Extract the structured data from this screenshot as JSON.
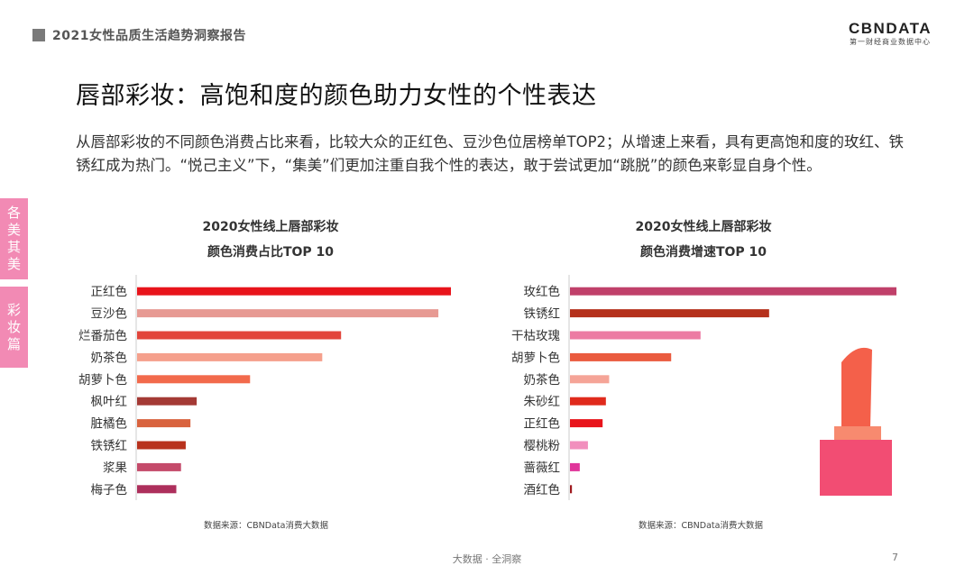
{
  "header": {
    "title": "2021女性品质生活趋势洞察报告"
  },
  "logo": {
    "main": "CBNDATA",
    "sub": "第一财经商业数据中心"
  },
  "page": {
    "title": "唇部彩妆：高饱和度的颜色助力女性的个性表达",
    "summary": "从唇部彩妆的不同颜色消费占比来看，比较大众的正红色、豆沙色位居榜单TOP2；从增速上来看，具有更高饱和度的玫红、铁锈红成为热门。“悦己主义”下，“集美”们更加注重自我个性的表达，敢于尝试更加“跳脱”的颜色来彰显自身个性。"
  },
  "side_tabs": [
    {
      "chars": [
        "各",
        "美",
        "其",
        "美"
      ]
    },
    {
      "chars": [
        "彩",
        "妆",
        "篇"
      ]
    }
  ],
  "chart_data": [
    {
      "type": "bar",
      "orientation": "horizontal",
      "title": "2020女性线上唇部彩妆",
      "subtitle": "颜色消费占比TOP 10",
      "categories": [
        "正红色",
        "豆沙色",
        "烂番茄色",
        "奶茶色",
        "胡萝卜色",
        "枫叶红",
        "脏橘色",
        "铁锈红",
        "浆果",
        "梅子色"
      ],
      "values": [
        100,
        96,
        65,
        59,
        36,
        19,
        17,
        15.5,
        14,
        12.5
      ],
      "colors": [
        "#e8141b",
        "#e79a93",
        "#e2453b",
        "#f5a08c",
        "#f26a4c",
        "#a43a35",
        "#d9633e",
        "#b8321d",
        "#c44a6a",
        "#ad2f5c"
      ],
      "source": "数据来源：CBNData消费大数据"
    },
    {
      "type": "bar",
      "orientation": "horizontal",
      "title": "2020女性线上唇部彩妆",
      "subtitle": "颜色消费增速TOP 10",
      "categories": [
        "玫红色",
        "铁锈红",
        "干枯玫瑰",
        "胡萝卜色",
        "奶茶色",
        "朱砂红",
        "正红色",
        "樱桃粉",
        "蔷薇红",
        "酒红色"
      ],
      "values": [
        100,
        61,
        40,
        31,
        12,
        11,
        10,
        5.5,
        3,
        0.6
      ],
      "colors": [
        "#c0406a",
        "#b5311c",
        "#ec7ba3",
        "#ea5b3f",
        "#f5a497",
        "#e02a1c",
        "#e8141b",
        "#f18fbd",
        "#e0359a",
        "#a01a1f"
      ],
      "source": "数据来源：CBNData消费大数据"
    }
  ],
  "footer": {
    "text": "大数据 · 全洞察",
    "page_number": "7"
  }
}
